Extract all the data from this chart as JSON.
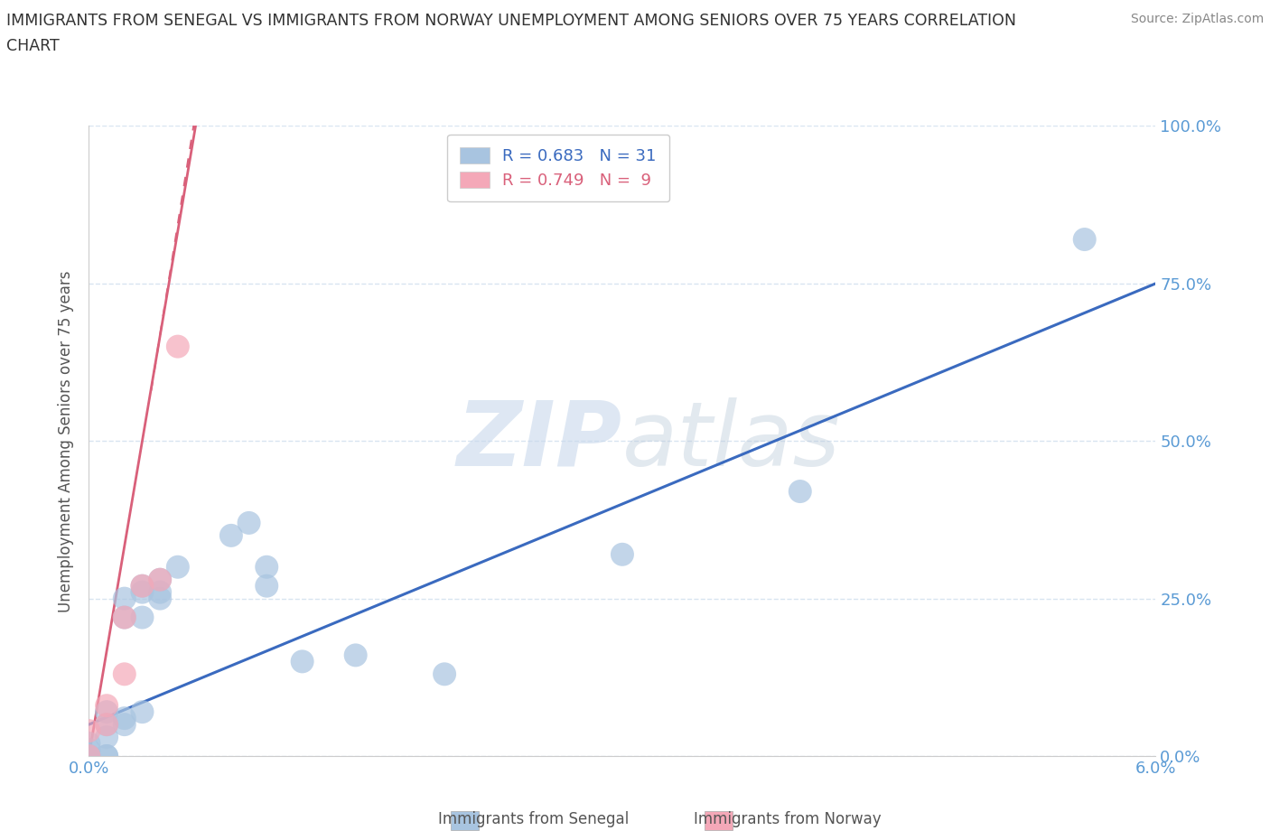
{
  "title_line1": "IMMIGRANTS FROM SENEGAL VS IMMIGRANTS FROM NORWAY UNEMPLOYMENT AMONG SENIORS OVER 75 YEARS CORRELATION",
  "title_line2": "CHART",
  "source": "Source: ZipAtlas.com",
  "ylabel": "Unemployment Among Seniors over 75 years",
  "xlim": [
    0,
    0.06
  ],
  "ylim": [
    0,
    1.0
  ],
  "xticks": [
    0.0,
    0.01,
    0.02,
    0.03,
    0.04,
    0.05,
    0.06
  ],
  "yticks": [
    0.0,
    0.25,
    0.5,
    0.75,
    1.0
  ],
  "ytick_labels": [
    "0.0%",
    "25.0%",
    "50.0%",
    "75.0%",
    "100.0%"
  ],
  "legend_r1": "R = 0.683",
  "legend_n1": "N = 31",
  "legend_r2": "R = 0.749",
  "legend_n2": "N =  9",
  "senegal_color": "#a8c4e0",
  "norway_color": "#f4a8b8",
  "senegal_line_color": "#3a6abf",
  "norway_line_color": "#d9607a",
  "watermark_color": "#c8d8ec",
  "axis_tick_color": "#5b9bd5",
  "grid_color": "#d8e4f0",
  "senegal_x": [
    0.0,
    0.0,
    0.0,
    0.0,
    0.001,
    0.001,
    0.001,
    0.001,
    0.001,
    0.002,
    0.002,
    0.002,
    0.002,
    0.003,
    0.003,
    0.003,
    0.003,
    0.004,
    0.004,
    0.004,
    0.005,
    0.008,
    0.009,
    0.01,
    0.01,
    0.012,
    0.015,
    0.02,
    0.03,
    0.04,
    0.056
  ],
  "senegal_y": [
    0.0,
    0.0,
    0.01,
    0.02,
    0.0,
    0.0,
    0.03,
    0.05,
    0.07,
    0.05,
    0.06,
    0.22,
    0.25,
    0.07,
    0.22,
    0.26,
    0.27,
    0.25,
    0.26,
    0.28,
    0.3,
    0.35,
    0.37,
    0.27,
    0.3,
    0.15,
    0.16,
    0.13,
    0.32,
    0.42,
    0.82
  ],
  "norway_x": [
    0.0,
    0.0,
    0.001,
    0.001,
    0.002,
    0.002,
    0.003,
    0.004,
    0.005
  ],
  "norway_y": [
    0.0,
    0.04,
    0.05,
    0.08,
    0.13,
    0.22,
    0.27,
    0.28,
    0.65
  ],
  "senegal_line_x": [
    0.0,
    0.06
  ],
  "senegal_line_y": [
    0.05,
    0.75
  ],
  "norway_line_x": [
    0.0,
    0.006
  ],
  "norway_line_y": [
    0.0,
    1.0
  ]
}
